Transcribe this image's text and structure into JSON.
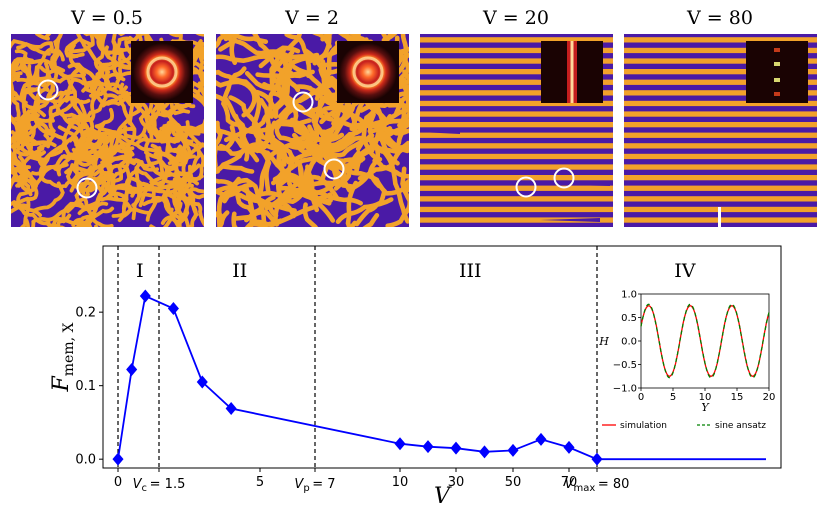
{
  "panels": [
    {
      "title": "V = 0.5",
      "pattern": "labyrinth-fine",
      "fft": "ring",
      "circles": 2
    },
    {
      "title": "V = 2",
      "pattern": "labyrinth-coarse",
      "fft": "ring",
      "circles": 2
    },
    {
      "title": "V = 20",
      "pattern": "stripes-defects",
      "fft": "line",
      "circles": 2
    },
    {
      "title": "V = 80",
      "pattern": "stripes-perfect",
      "fft": "dots",
      "circles": 0
    }
  ],
  "colors": {
    "stripe_dark": "#4a1aa6",
    "stripe_light": "#f2a22a",
    "line": "#0000ff",
    "inset_sim": "#ff0000",
    "inset_ansatz": "#008000"
  },
  "chart_data": {
    "type": "line",
    "xlabel": "V",
    "ylabel": "F_mem, X",
    "ylabel_display": {
      "main": "F",
      "sub": "mem, X"
    },
    "ylim": [
      -0.012,
      0.29
    ],
    "yticks": [
      0.0,
      0.1,
      0.2
    ],
    "ytick_labels": [
      "0.0",
      "0.1",
      "0.2"
    ],
    "x_axis_note": "piecewise axis: compressed spacing for V>=10",
    "xtick_labels": [
      {
        "v": 0,
        "label": "0"
      },
      {
        "v": 1.5,
        "label": "V_c = 1.5"
      },
      {
        "v": 5,
        "label": "5"
      },
      {
        "v": 7,
        "label": "V_p = 7"
      },
      {
        "v": 10,
        "label": "10"
      },
      {
        "v": 30,
        "label": "30"
      },
      {
        "v": 50,
        "label": "50"
      },
      {
        "v": 70,
        "label": "70"
      },
      {
        "v": 80,
        "label": "V_max = 80"
      }
    ],
    "series": [
      {
        "name": "F_mem,X",
        "x": [
          0,
          0.5,
          1,
          2,
          3,
          4,
          10,
          20,
          30,
          40,
          50,
          60,
          70,
          80
        ],
        "y": [
          0.0,
          0.122,
          0.222,
          0.205,
          0.105,
          0.069,
          0.021,
          0.017,
          0.015,
          0.01,
          0.012,
          0.027,
          0.016,
          0.0
        ],
        "marker": "diamond",
        "extends_to": 105
      }
    ],
    "vlines": [
      0,
      1.5,
      7,
      80
    ],
    "regions": [
      {
        "label": "I",
        "x": 0.8
      },
      {
        "label": "II",
        "x": 4.3
      },
      {
        "label": "III",
        "x": 35
      },
      {
        "label": "IV",
        "x": 93
      }
    ],
    "inset": {
      "type": "line",
      "xlabel": "Y",
      "ylabel": "H",
      "xlim": [
        0,
        20
      ],
      "ylim": [
        -1.0,
        1.0
      ],
      "xticks": [
        0,
        5,
        10,
        15,
        20
      ],
      "yticks": [
        -1.0,
        -0.5,
        0.0,
        0.5,
        1.0
      ],
      "ytick_labels": [
        "−1.0",
        "−0.5",
        "0.0",
        "0.5",
        "1.0"
      ],
      "period": 6.5,
      "amplitude": 0.78,
      "legend": [
        "simulation",
        "sine ansatz"
      ]
    }
  }
}
